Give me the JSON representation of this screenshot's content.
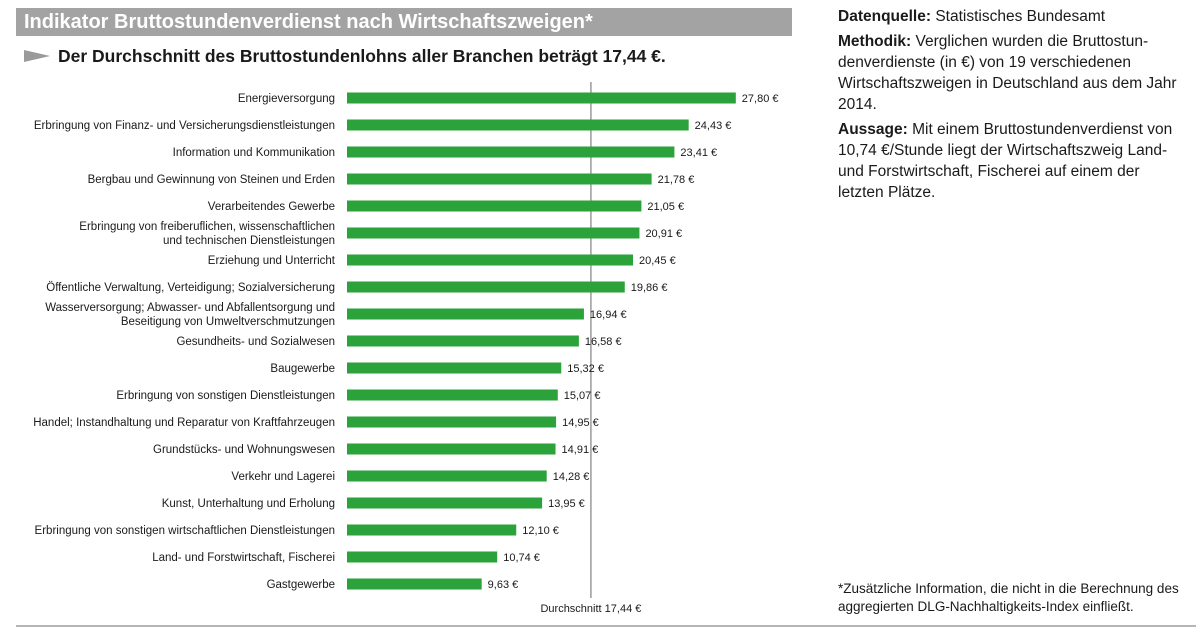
{
  "title": "Indikator Bruttostundenverdienst nach Wirtschaftszweigen*",
  "subtitle": "Der Durchschnitt des Bruttostundenlohns aller Branchen beträgt 17,44 €.",
  "side": {
    "source_label": "Datenquelle:",
    "source_text": "Statistisches Bundesamt",
    "method_label": "Methodik:",
    "method_text": "Verglichen wurden die Bruttostun-denverdienste (in €) von 19 verschiedenen Wirtschaftszweigen in Deutschland aus dem Jahr 2014.",
    "statement_label": "Aussage:",
    "statement_text": "Mit einem Bruttostundenverdienst von 10,74 €/Stunde liegt der Wirtschaftszweig Land- und Forstwirtschaft, Fischerei auf einem der letzten Plätze."
  },
  "footnote": "*Zusätzliche Information, die nicht in die Berechnung des aggregierten DLG-Nachhaltigkeits-Index einfließt.",
  "colors": {
    "bar": "#2ba23a",
    "title_bar": "#a3a3a3",
    "average_line": "#9a9a9a",
    "arrow": "#9a9a9a"
  },
  "chart_data": {
    "type": "bar",
    "orientation": "horizontal",
    "categories": [
      [
        "Energieversorgung"
      ],
      [
        "Erbringung von Finanz- und Versicherungsdienstleistungen"
      ],
      [
        "Information und Kommunikation"
      ],
      [
        "Bergbau und Gewinnung von Steinen und Erden"
      ],
      [
        "Verarbeitendes Gewerbe"
      ],
      [
        "Erbringung von freiberuflichen, wissenschaftlichen",
        "und technischen Dienstleistungen"
      ],
      [
        "Erziehung und Unterricht"
      ],
      [
        "Öffentliche Verwaltung, Verteidigung; Sozialversicherung"
      ],
      [
        "Wasserversorgung; Abwasser- und Abfallentsorgung und",
        "Beseitigung von Umweltverschmutzungen"
      ],
      [
        "Gesundheits- und Sozialwesen"
      ],
      [
        "Baugewerbe"
      ],
      [
        "Erbringung von sonstigen Dienstleistungen"
      ],
      [
        "Handel; Instandhaltung und Reparatur von Kraftfahrzeugen"
      ],
      [
        "Grundstücks- und Wohnungswesen"
      ],
      [
        "Verkehr und Lagerei"
      ],
      [
        "Kunst, Unterhaltung und Erholung"
      ],
      [
        "Erbringung von sonstigen wirtschaftlichen Dienstleistungen"
      ],
      [
        "Land- und Forstwirtschaft, Fischerei"
      ],
      [
        "Gastgewerbe"
      ]
    ],
    "values": [
      27.8,
      24.43,
      23.41,
      21.78,
      21.05,
      20.91,
      20.45,
      19.86,
      16.94,
      16.58,
      15.32,
      15.07,
      14.95,
      14.91,
      14.28,
      13.95,
      12.1,
      10.74,
      9.63
    ],
    "value_labels": [
      "27,80 €",
      "24,43 €",
      "23,41 €",
      "21,78 €",
      "21,05 €",
      "20,91 €",
      "20,45 €",
      "19,86 €",
      "16,94 €",
      "16,58 €",
      "15,32 €",
      "15,07 €",
      "14,95 €",
      "14,91 €",
      "14,28 €",
      "13,95 €",
      "12,10 €",
      "10,74 €",
      "9,63 €"
    ],
    "average": 17.44,
    "average_label": "Durchschnitt 17,44 €",
    "xlim": [
      0,
      28.6
    ]
  }
}
